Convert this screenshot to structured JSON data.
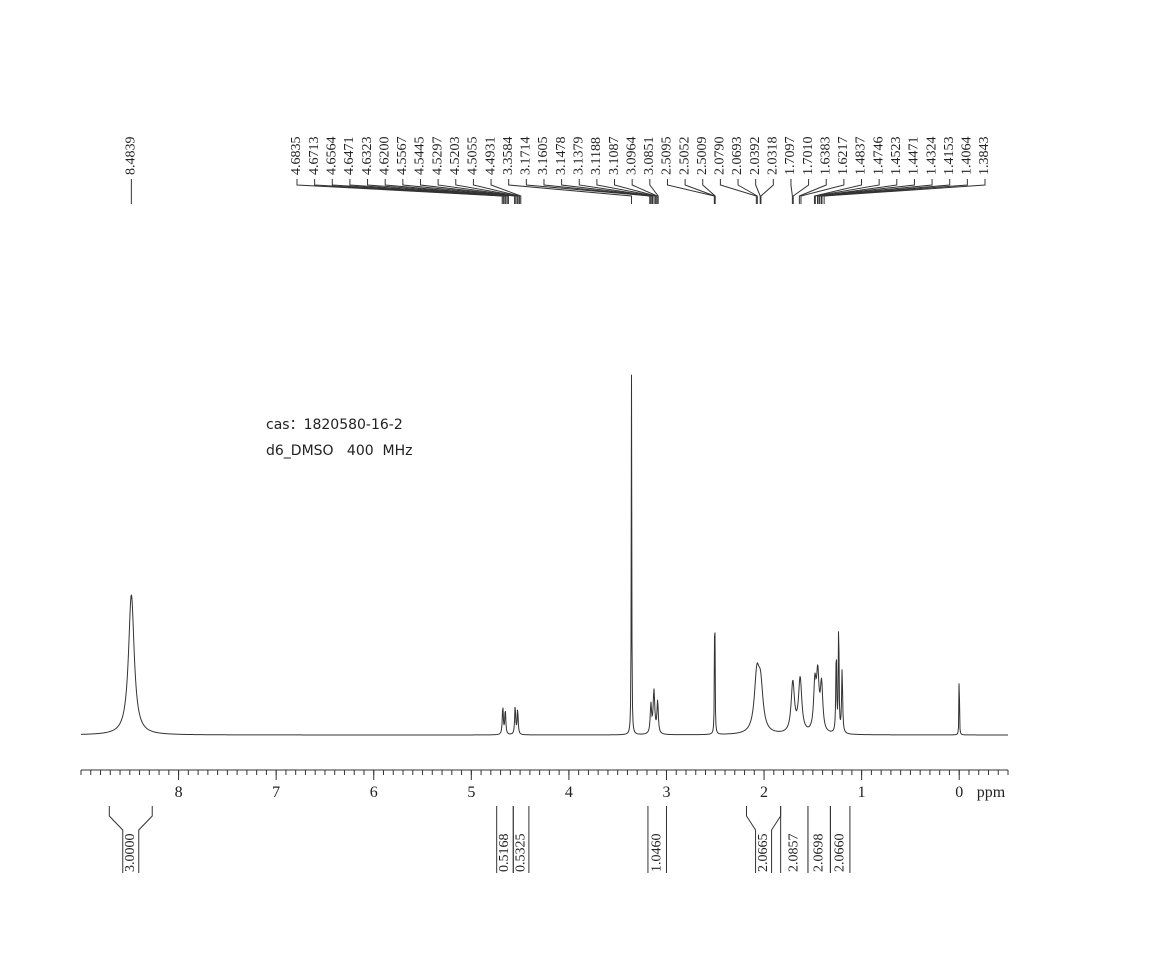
{
  "chart_data": {
    "type": "nmr",
    "annotations": [
      "cas：1820580-16-2",
      "d6_DMSO   400  MHz"
    ],
    "x_label": "ppm",
    "xlim": [
      9.0,
      -0.5
    ],
    "xticks": [
      8,
      7,
      6,
      5,
      4,
      3,
      2,
      1,
      0
    ],
    "minor_tick_step": 0.1,
    "ylim": [
      0,
      100
    ],
    "peak_labels": [
      [
        8.4839
      ],
      [
        4.6835,
        4.6713,
        4.6564,
        4.6471,
        4.6323,
        {
          "value": 4.62,
          "label": "4.6200"
        },
        4.5567,
        4.5445,
        4.5297,
        4.5203,
        4.5055,
        4.4931,
        3.3584,
        3.1714,
        3.1605,
        3.1478,
        3.1379,
        3.1188,
        3.1087,
        3.0964,
        3.0851,
        2.5095,
        2.5052,
        2.5009,
        {
          "value": 2.079,
          "label": "2.0790"
        },
        2.0693,
        2.0392,
        2.0318,
        1.7097,
        {
          "value": 1.701,
          "label": "1.7010"
        },
        1.6383,
        1.6217,
        1.4837,
        1.4746,
        1.4523,
        1.4471,
        1.4324,
        1.4153,
        1.4064,
        1.3843
      ]
    ],
    "integrals": [
      {
        "value": 3.0,
        "label": "3.0000",
        "range": [
          8.71,
          8.27
        ]
      },
      {
        "value": 0.5168,
        "label": "0.5168",
        "range": [
          4.74,
          4.57
        ]
      },
      {
        "value": 0.5325,
        "label": "0.5325",
        "range": [
          4.57,
          4.41
        ]
      },
      {
        "value": 1.046,
        "label": "1.0460",
        "range": [
          3.19,
          3.0
        ]
      },
      {
        "value": 2.0665,
        "label": "2.0665",
        "range": [
          2.18,
          1.83
        ]
      },
      {
        "value": 2.0857,
        "label": "2.0857",
        "range": [
          1.83,
          1.55
        ]
      },
      {
        "value": 2.0698,
        "label": "2.0698",
        "range": [
          1.55,
          1.32
        ]
      },
      {
        "value": 2.066,
        "label": "2.0660",
        "range": [
          1.32,
          1.12
        ]
      }
    ],
    "signals": {
      "x": [
        8.4839,
        4.6774,
        4.6518,
        4.5506,
        4.525,
        3.3584,
        3.1596,
        3.1283,
        3.0907,
        2.5052,
        2.0741,
        2.0355,
        1.7053,
        1.63,
        1.4791,
        1.4497,
        1.4108,
        1.26,
        1.235,
        1.2,
        0.0
      ],
      "height": [
        39,
        8,
        7,
        8,
        7,
        100,
        8,
        12,
        9,
        48,
        15,
        12,
        14,
        15,
        13,
        15,
        13,
        24,
        34,
        18,
        31
      ],
      "width": [
        0.035,
        0.006,
        0.006,
        0.006,
        0.006,
        0.003,
        0.008,
        0.01,
        0.008,
        0.003,
        0.03,
        0.03,
        0.02,
        0.02,
        0.015,
        0.015,
        0.015,
        0.005,
        0.004,
        0.006,
        0.002
      ]
    }
  }
}
